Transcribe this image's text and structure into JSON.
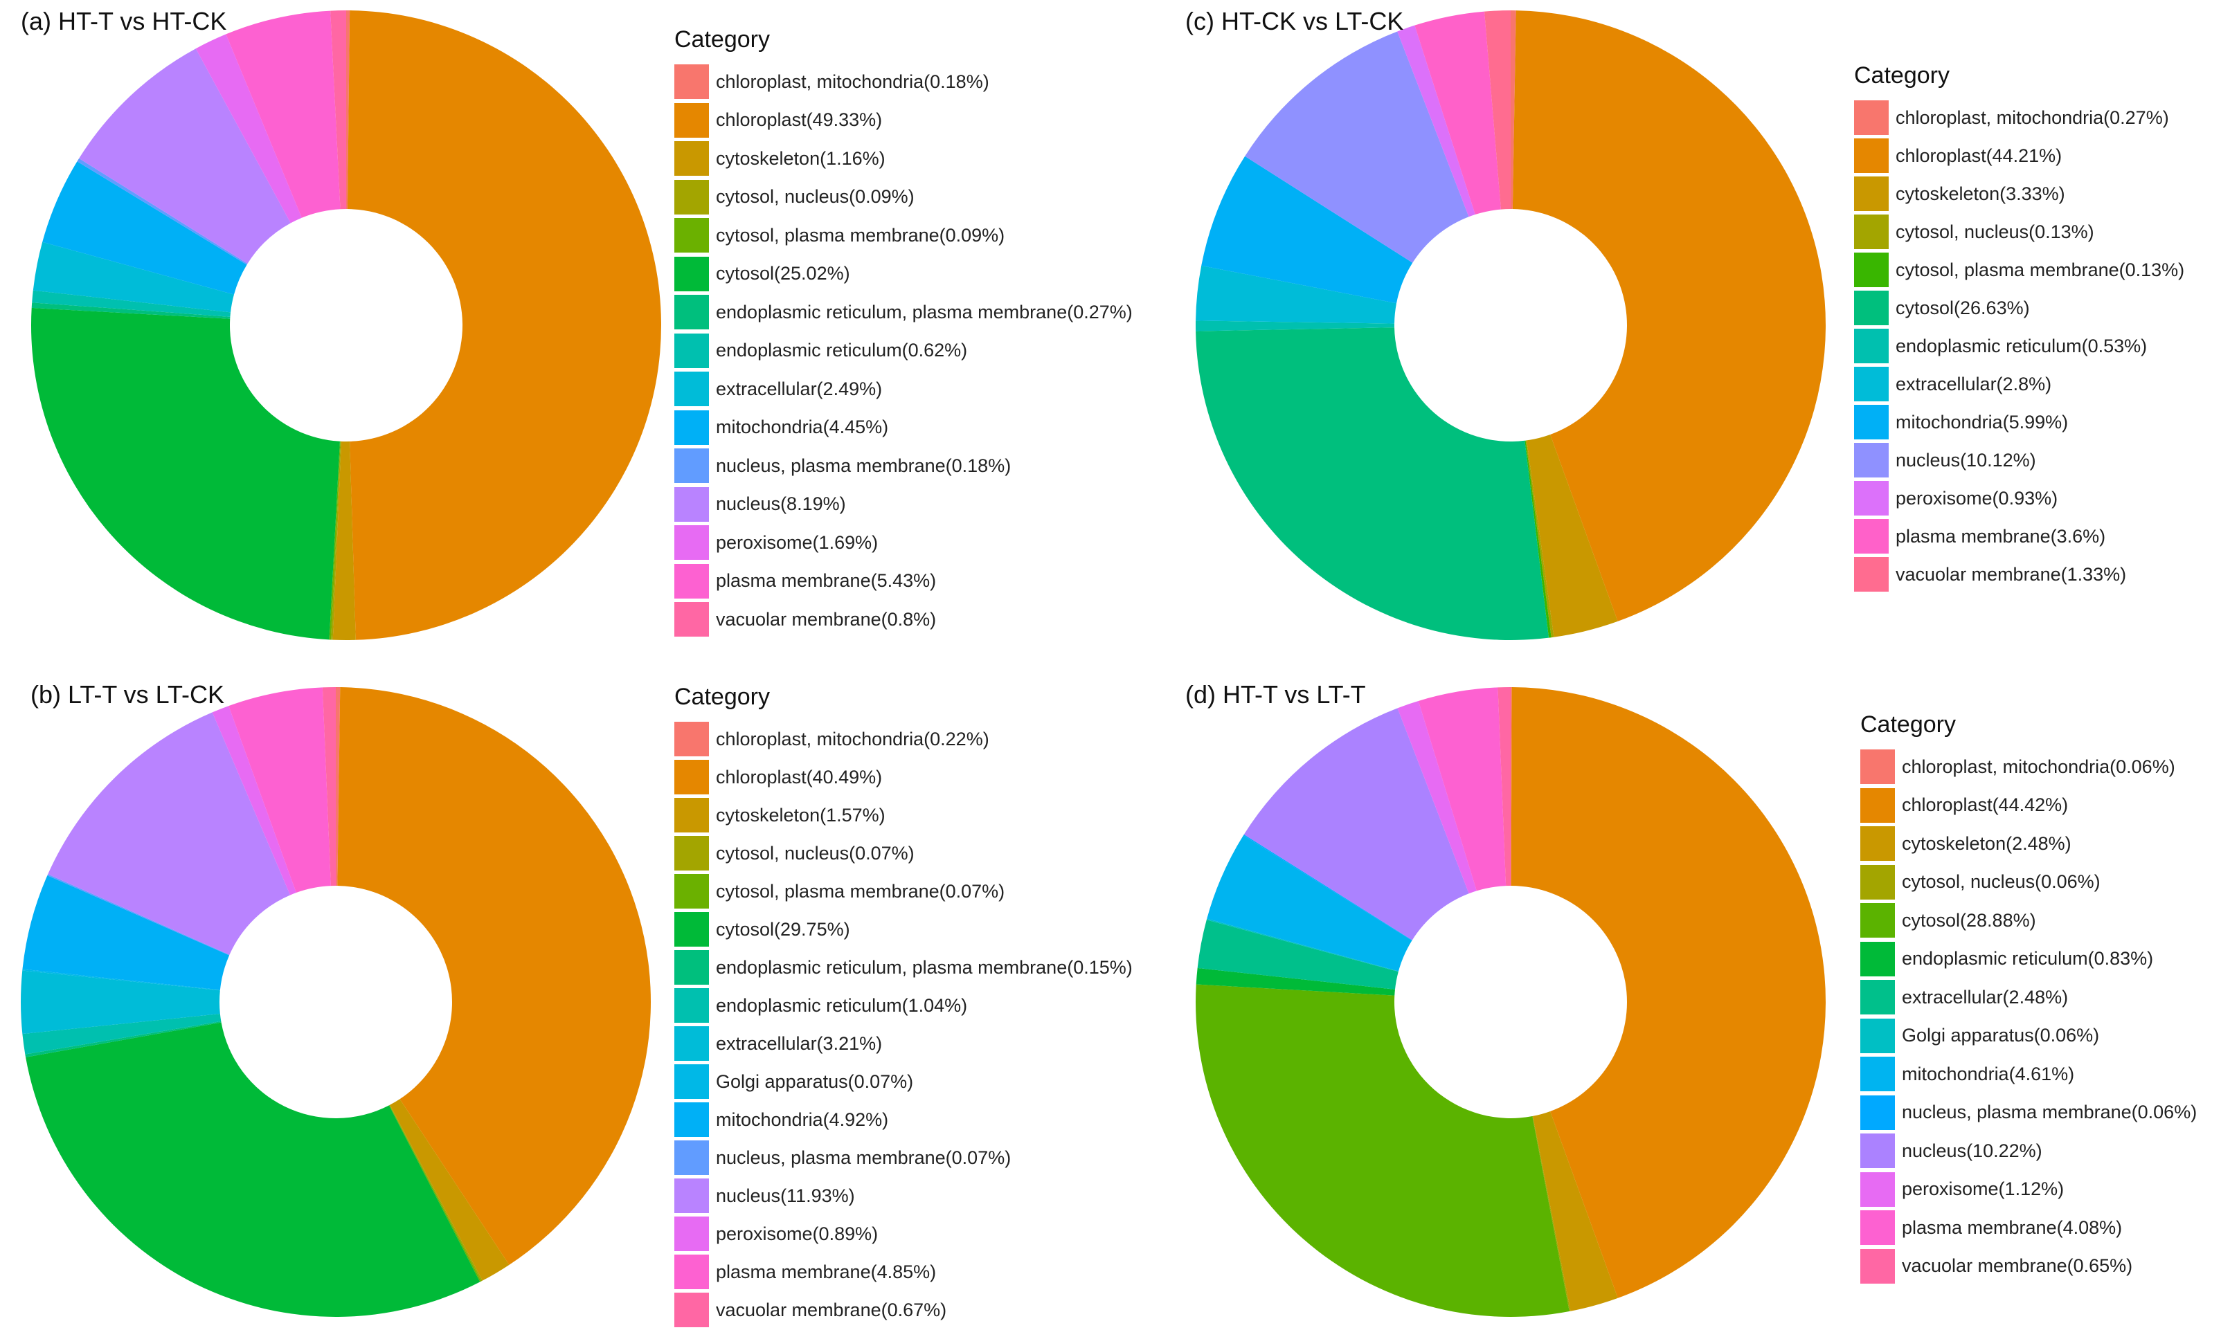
{
  "chart_data": [
    {
      "type": "pie",
      "title": "(a) HT-T vs HT-CK",
      "legend_title": "Category",
      "legend_placement": "right",
      "categories": [
        "chloroplast, mitochondria(0.18%)",
        "chloroplast(49.33%)",
        "cytoskeleton(1.16%)",
        "cytosol, nucleus(0.09%)",
        "cytosol, plasma membrane(0.09%)",
        "cytosol(25.02%)",
        "endoplasmic reticulum, plasma membrane(0.27%)",
        "endoplasmic reticulum(0.62%)",
        "extracellular(2.49%)",
        "mitochondria(4.45%)",
        "nucleus, plasma membrane(0.18%)",
        "nucleus(8.19%)",
        "peroxisome(1.69%)",
        "plasma membrane(5.43%)",
        "vacuolar membrane(0.8%)"
      ],
      "values": [
        0.18,
        49.33,
        1.16,
        0.09,
        0.09,
        25.02,
        0.27,
        0.62,
        2.49,
        4.45,
        0.18,
        8.19,
        1.69,
        5.43,
        0.8
      ],
      "colors": [
        "#F8766D",
        "#E58700",
        "#C99800",
        "#A3A500",
        "#6BB100",
        "#00BA38",
        "#00BF7D",
        "#00C0AF",
        "#00BCD8",
        "#00B0F6",
        "#619CFF",
        "#B983FF",
        "#E76BF3",
        "#FD61D1",
        "#FF67A4"
      ]
    },
    {
      "type": "pie",
      "title": "(b) LT-T vs LT-CK",
      "legend_title": "Category",
      "legend_placement": "right",
      "categories": [
        "chloroplast, mitochondria(0.22%)",
        "chloroplast(40.49%)",
        "cytoskeleton(1.57%)",
        "cytosol, nucleus(0.07%)",
        "cytosol, plasma membrane(0.07%)",
        "cytosol(29.75%)",
        "endoplasmic reticulum, plasma membrane(0.15%)",
        "endoplasmic reticulum(1.04%)",
        "extracellular(3.21%)",
        "Golgi apparatus(0.07%)",
        "mitochondria(4.92%)",
        "nucleus, plasma membrane(0.07%)",
        "nucleus(11.93%)",
        "peroxisome(0.89%)",
        "plasma membrane(4.85%)",
        "vacuolar membrane(0.67%)"
      ],
      "values": [
        0.22,
        40.49,
        1.57,
        0.07,
        0.07,
        29.75,
        0.15,
        1.04,
        3.21,
        0.07,
        4.92,
        0.07,
        11.93,
        0.89,
        4.85,
        0.67
      ],
      "colors": [
        "#F8766D",
        "#E58700",
        "#C99800",
        "#A3A500",
        "#6BB100",
        "#00BA38",
        "#00BF7D",
        "#00C0AF",
        "#00BCD8",
        "#00B8E7",
        "#00B0F6",
        "#619CFF",
        "#B983FF",
        "#E76BF3",
        "#FD61D1",
        "#FF67A4"
      ]
    },
    {
      "type": "pie",
      "title": "(c) HT-CK vs LT-CK",
      "legend_title": "Category",
      "legend_placement": "right",
      "categories": [
        "chloroplast, mitochondria(0.27%)",
        "chloroplast(44.21%)",
        "cytoskeleton(3.33%)",
        "cytosol, nucleus(0.13%)",
        "cytosol, plasma membrane(0.13%)",
        "cytosol(26.63%)",
        "endoplasmic reticulum(0.53%)",
        "extracellular(2.8%)",
        "mitochondria(5.99%)",
        "nucleus(10.12%)",
        "peroxisome(0.93%)",
        "plasma membrane(3.6%)",
        "vacuolar membrane(1.33%)"
      ],
      "values": [
        0.27,
        44.21,
        3.33,
        0.13,
        0.13,
        26.63,
        0.53,
        2.8,
        5.99,
        10.12,
        0.93,
        3.6,
        1.33
      ],
      "colors": [
        "#F8766D",
        "#E58700",
        "#C99800",
        "#A3A500",
        "#39B600",
        "#00BF7D",
        "#00C0AF",
        "#00BCD8",
        "#00B0F6",
        "#8F91FF",
        "#DC71FA",
        "#FF61C9",
        "#FF6C90"
      ]
    },
    {
      "type": "pie",
      "title": "(d) HT-T vs LT-T",
      "legend_title": "Category",
      "legend_placement": "right",
      "categories": [
        "chloroplast, mitochondria(0.06%)",
        "chloroplast(44.42%)",
        "cytoskeleton(2.48%)",
        "cytosol, nucleus(0.06%)",
        "cytosol(28.88%)",
        "endoplasmic reticulum(0.83%)",
        "extracellular(2.48%)",
        "Golgi apparatus(0.06%)",
        "mitochondria(4.61%)",
        "nucleus, plasma membrane(0.06%)",
        "nucleus(10.22%)",
        "peroxisome(1.12%)",
        "plasma membrane(4.08%)",
        "vacuolar membrane(0.65%)"
      ],
      "values": [
        0.06,
        44.42,
        2.48,
        0.06,
        28.88,
        0.83,
        2.48,
        0.06,
        4.61,
        0.06,
        10.22,
        1.12,
        4.08,
        0.65
      ],
      "colors": [
        "#F8766D",
        "#E58700",
        "#C99800",
        "#A3A500",
        "#5BB300",
        "#00BA38",
        "#00C08B",
        "#00BFC4",
        "#00B4F0",
        "#00A9FF",
        "#AB82FF",
        "#E76BF3",
        "#FD61D1",
        "#FF67A4"
      ]
    }
  ]
}
